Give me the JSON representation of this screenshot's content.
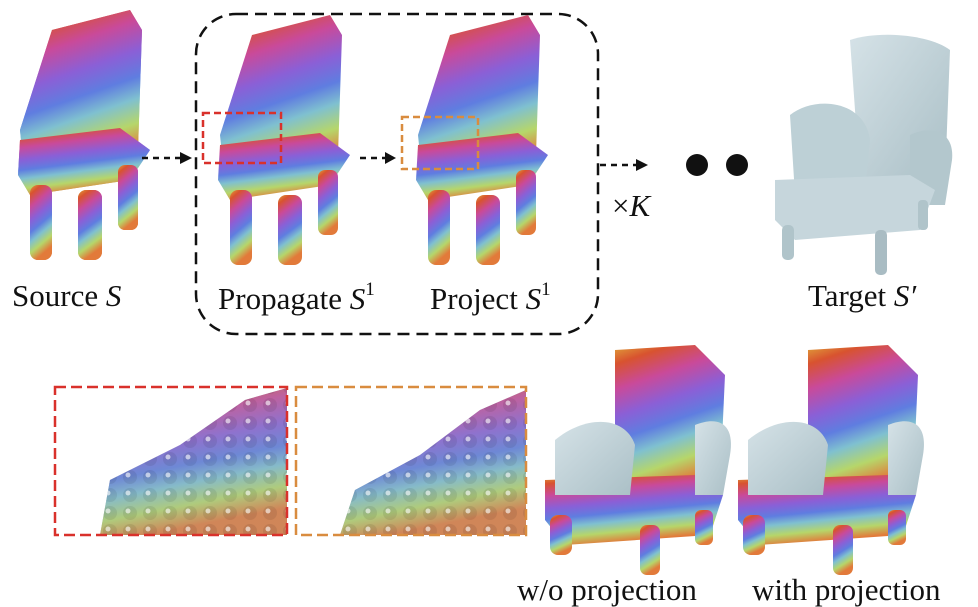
{
  "labels": {
    "source_word": "Source",
    "source_symbol": "S",
    "propagate_word": "Propagate",
    "propagate_symbol": "S",
    "propagate_sup": "1",
    "project_word": "Project",
    "project_symbol": "S",
    "project_sup": "1",
    "target_word": "Target",
    "target_symbol": "S′",
    "times": "×",
    "times_symbol": "K",
    "wo_projection": "w/o projection",
    "with_projection": "with projection"
  },
  "colors": {
    "red_box": "#d9312b",
    "orange_box": "#d98c3f",
    "mesh": "#c6d6dc",
    "mesh_shadow": "#a9bcc3",
    "dashed_frame": "#111111"
  }
}
